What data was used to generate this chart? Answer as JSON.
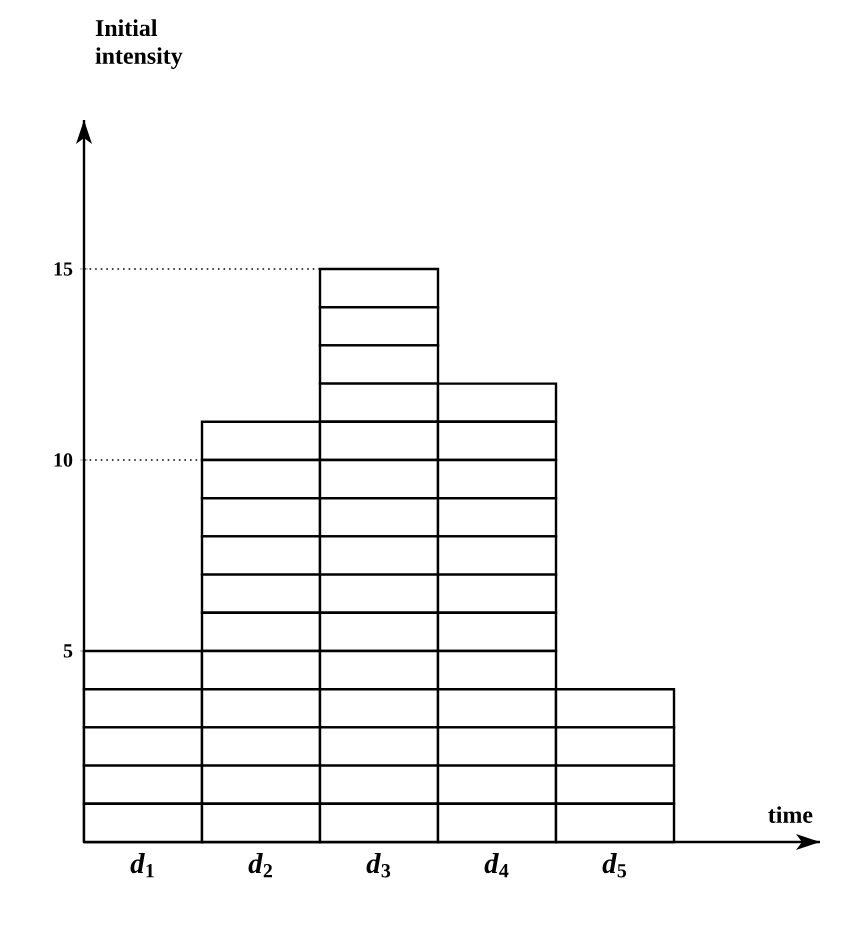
{
  "chart_data": {
    "type": "bar",
    "stacked": true,
    "xlabel": "time",
    "ylabel": "Initial intensity",
    "categories": [
      "*d*$_{1}$",
      "*d*$_{2}$",
      "*d*$_{3}$",
      "*d*$_{4}$",
      "*d*$_{5}$"
    ],
    "series": [
      {
        "color": "#ffffff",
        "values": [
          1,
          1,
          1,
          1,
          1
        ]
      },
      {
        "color": "#ffffff",
        "values": [
          1,
          1,
          1,
          1,
          1
        ]
      },
      {
        "color": "#ffffff",
        "values": [
          1,
          1,
          1,
          1,
          1
        ]
      },
      {
        "color": "#ffffff",
        "values": [
          1,
          1,
          1,
          1,
          1
        ]
      },
      {
        "color": "#ffffff",
        "values": [
          1,
          1,
          1,
          1,
          null
        ]
      },
      {
        "color": "#ffffff",
        "values": [
          null,
          1,
          1,
          1,
          null
        ]
      },
      {
        "color": "#ffffff",
        "values": [
          null,
          1,
          1,
          1,
          null
        ]
      },
      {
        "color": "#ffffff",
        "values": [
          null,
          1,
          1,
          1,
          null
        ]
      },
      {
        "color": "#ffffff",
        "values": [
          null,
          1,
          1,
          1,
          null
        ]
      },
      {
        "color": "#ffffff",
        "values": [
          null,
          1,
          1,
          1,
          null
        ]
      },
      {
        "color": "#ffffff",
        "values": [
          null,
          1,
          1,
          1,
          null
        ]
      },
      {
        "color": "#ffffff",
        "values": [
          null,
          null,
          1,
          1,
          null
        ]
      },
      {
        "color": "#ffffff",
        "values": [
          null,
          null,
          1,
          null,
          null
        ]
      },
      {
        "color": "#ffffff",
        "values": [
          null,
          null,
          1,
          null,
          null
        ]
      },
      {
        "color": "#ffffff",
        "values": [
          null,
          null,
          1,
          null,
          null
        ]
      }
    ],
    "ylim": [
      0,
      18.9
    ],
    "yticks": [
      5,
      10,
      15
    ],
    "ref_lines": [
      {
        "axis": "y",
        "value": 15,
        "line_style": "dotted"
      },
      {
        "axis": "y",
        "value": 10,
        "line_style": "dotted"
      }
    ]
  }
}
